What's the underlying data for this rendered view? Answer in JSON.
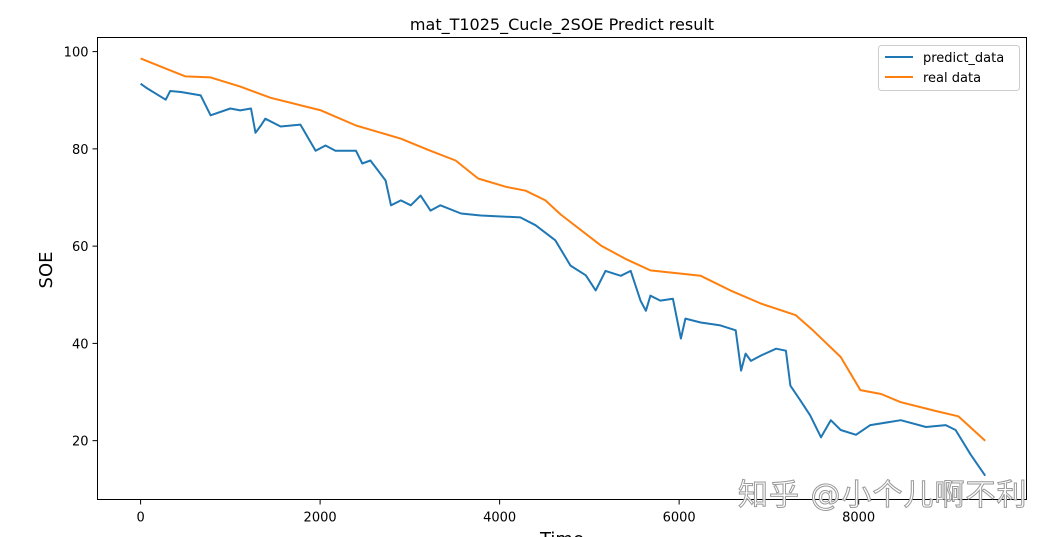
{
  "chart_data": {
    "type": "line",
    "title": "mat_T1025_Cucle_2SOE Predict result",
    "xlabel": "Time",
    "ylabel": "SOE",
    "xlim": [
      -480,
      9870
    ],
    "ylim": [
      7.9,
      102.9
    ],
    "xticks": [
      0,
      2000,
      4000,
      6000,
      8000
    ],
    "yticks": [
      20,
      40,
      60,
      80,
      100
    ],
    "grid": false,
    "legend_position": "top-right",
    "series": [
      {
        "name": "predict_data",
        "color": "#1f77b4",
        "points": [
          [
            0,
            93.4
          ],
          [
            60,
            92.6
          ],
          [
            280,
            90.1
          ],
          [
            330,
            91.9
          ],
          [
            450,
            91.7
          ],
          [
            670,
            91.0
          ],
          [
            780,
            86.9
          ],
          [
            1000,
            88.3
          ],
          [
            1110,
            87.9
          ],
          [
            1230,
            88.3
          ],
          [
            1280,
            83.3
          ],
          [
            1340,
            84.8
          ],
          [
            1390,
            86.2
          ],
          [
            1560,
            84.6
          ],
          [
            1780,
            85.0
          ],
          [
            1950,
            79.6
          ],
          [
            2060,
            80.7
          ],
          [
            2170,
            79.6
          ],
          [
            2400,
            79.6
          ],
          [
            2470,
            77.0
          ],
          [
            2560,
            77.6
          ],
          [
            2730,
            73.5
          ],
          [
            2790,
            68.4
          ],
          [
            2900,
            69.4
          ],
          [
            3010,
            68.4
          ],
          [
            3120,
            70.4
          ],
          [
            3230,
            67.3
          ],
          [
            3340,
            68.4
          ],
          [
            3570,
            66.7
          ],
          [
            3790,
            66.3
          ],
          [
            4230,
            65.9
          ],
          [
            4400,
            64.3
          ],
          [
            4620,
            61.2
          ],
          [
            4790,
            56.0
          ],
          [
            4960,
            54.0
          ],
          [
            5070,
            50.9
          ],
          [
            5180,
            54.9
          ],
          [
            5350,
            53.9
          ],
          [
            5460,
            54.9
          ],
          [
            5570,
            48.8
          ],
          [
            5630,
            46.7
          ],
          [
            5680,
            49.8
          ],
          [
            5790,
            48.8
          ],
          [
            5930,
            49.2
          ],
          [
            6020,
            41.0
          ],
          [
            6070,
            45.1
          ],
          [
            6240,
            44.3
          ],
          [
            6460,
            43.7
          ],
          [
            6630,
            42.7
          ],
          [
            6690,
            34.4
          ],
          [
            6740,
            37.9
          ],
          [
            6800,
            36.4
          ],
          [
            6910,
            37.5
          ],
          [
            7080,
            38.9
          ],
          [
            7190,
            38.5
          ],
          [
            7240,
            31.3
          ],
          [
            7350,
            28.3
          ],
          [
            7460,
            25.2
          ],
          [
            7580,
            20.7
          ],
          [
            7690,
            24.2
          ],
          [
            7800,
            22.2
          ],
          [
            7970,
            21.2
          ],
          [
            8130,
            23.2
          ],
          [
            8470,
            24.2
          ],
          [
            8750,
            22.8
          ],
          [
            8970,
            23.2
          ],
          [
            9080,
            22.2
          ],
          [
            9250,
            17.1
          ],
          [
            9410,
            12.8
          ]
        ]
      },
      {
        "name": "real data",
        "color": "#ff7f0e",
        "points": [
          [
            0,
            98.6
          ],
          [
            280,
            96.5
          ],
          [
            500,
            94.9
          ],
          [
            780,
            94.7
          ],
          [
            1110,
            92.8
          ],
          [
            1450,
            90.5
          ],
          [
            2010,
            87.9
          ],
          [
            2400,
            84.8
          ],
          [
            2900,
            82.1
          ],
          [
            3230,
            79.6
          ],
          [
            3510,
            77.6
          ],
          [
            3760,
            73.9
          ],
          [
            4070,
            72.2
          ],
          [
            4290,
            71.4
          ],
          [
            4510,
            69.4
          ],
          [
            4680,
            66.5
          ],
          [
            5130,
            60.1
          ],
          [
            5400,
            57.4
          ],
          [
            5680,
            55.0
          ],
          [
            6240,
            53.9
          ],
          [
            6570,
            50.9
          ],
          [
            6910,
            48.2
          ],
          [
            7300,
            45.8
          ],
          [
            7490,
            42.7
          ],
          [
            7800,
            37.2
          ],
          [
            8020,
            30.4
          ],
          [
            8250,
            29.6
          ],
          [
            8470,
            27.9
          ],
          [
            8860,
            26.1
          ],
          [
            9110,
            25.0
          ],
          [
            9410,
            20.0
          ]
        ]
      }
    ]
  },
  "watermark": "知乎 @小个儿啊不利"
}
